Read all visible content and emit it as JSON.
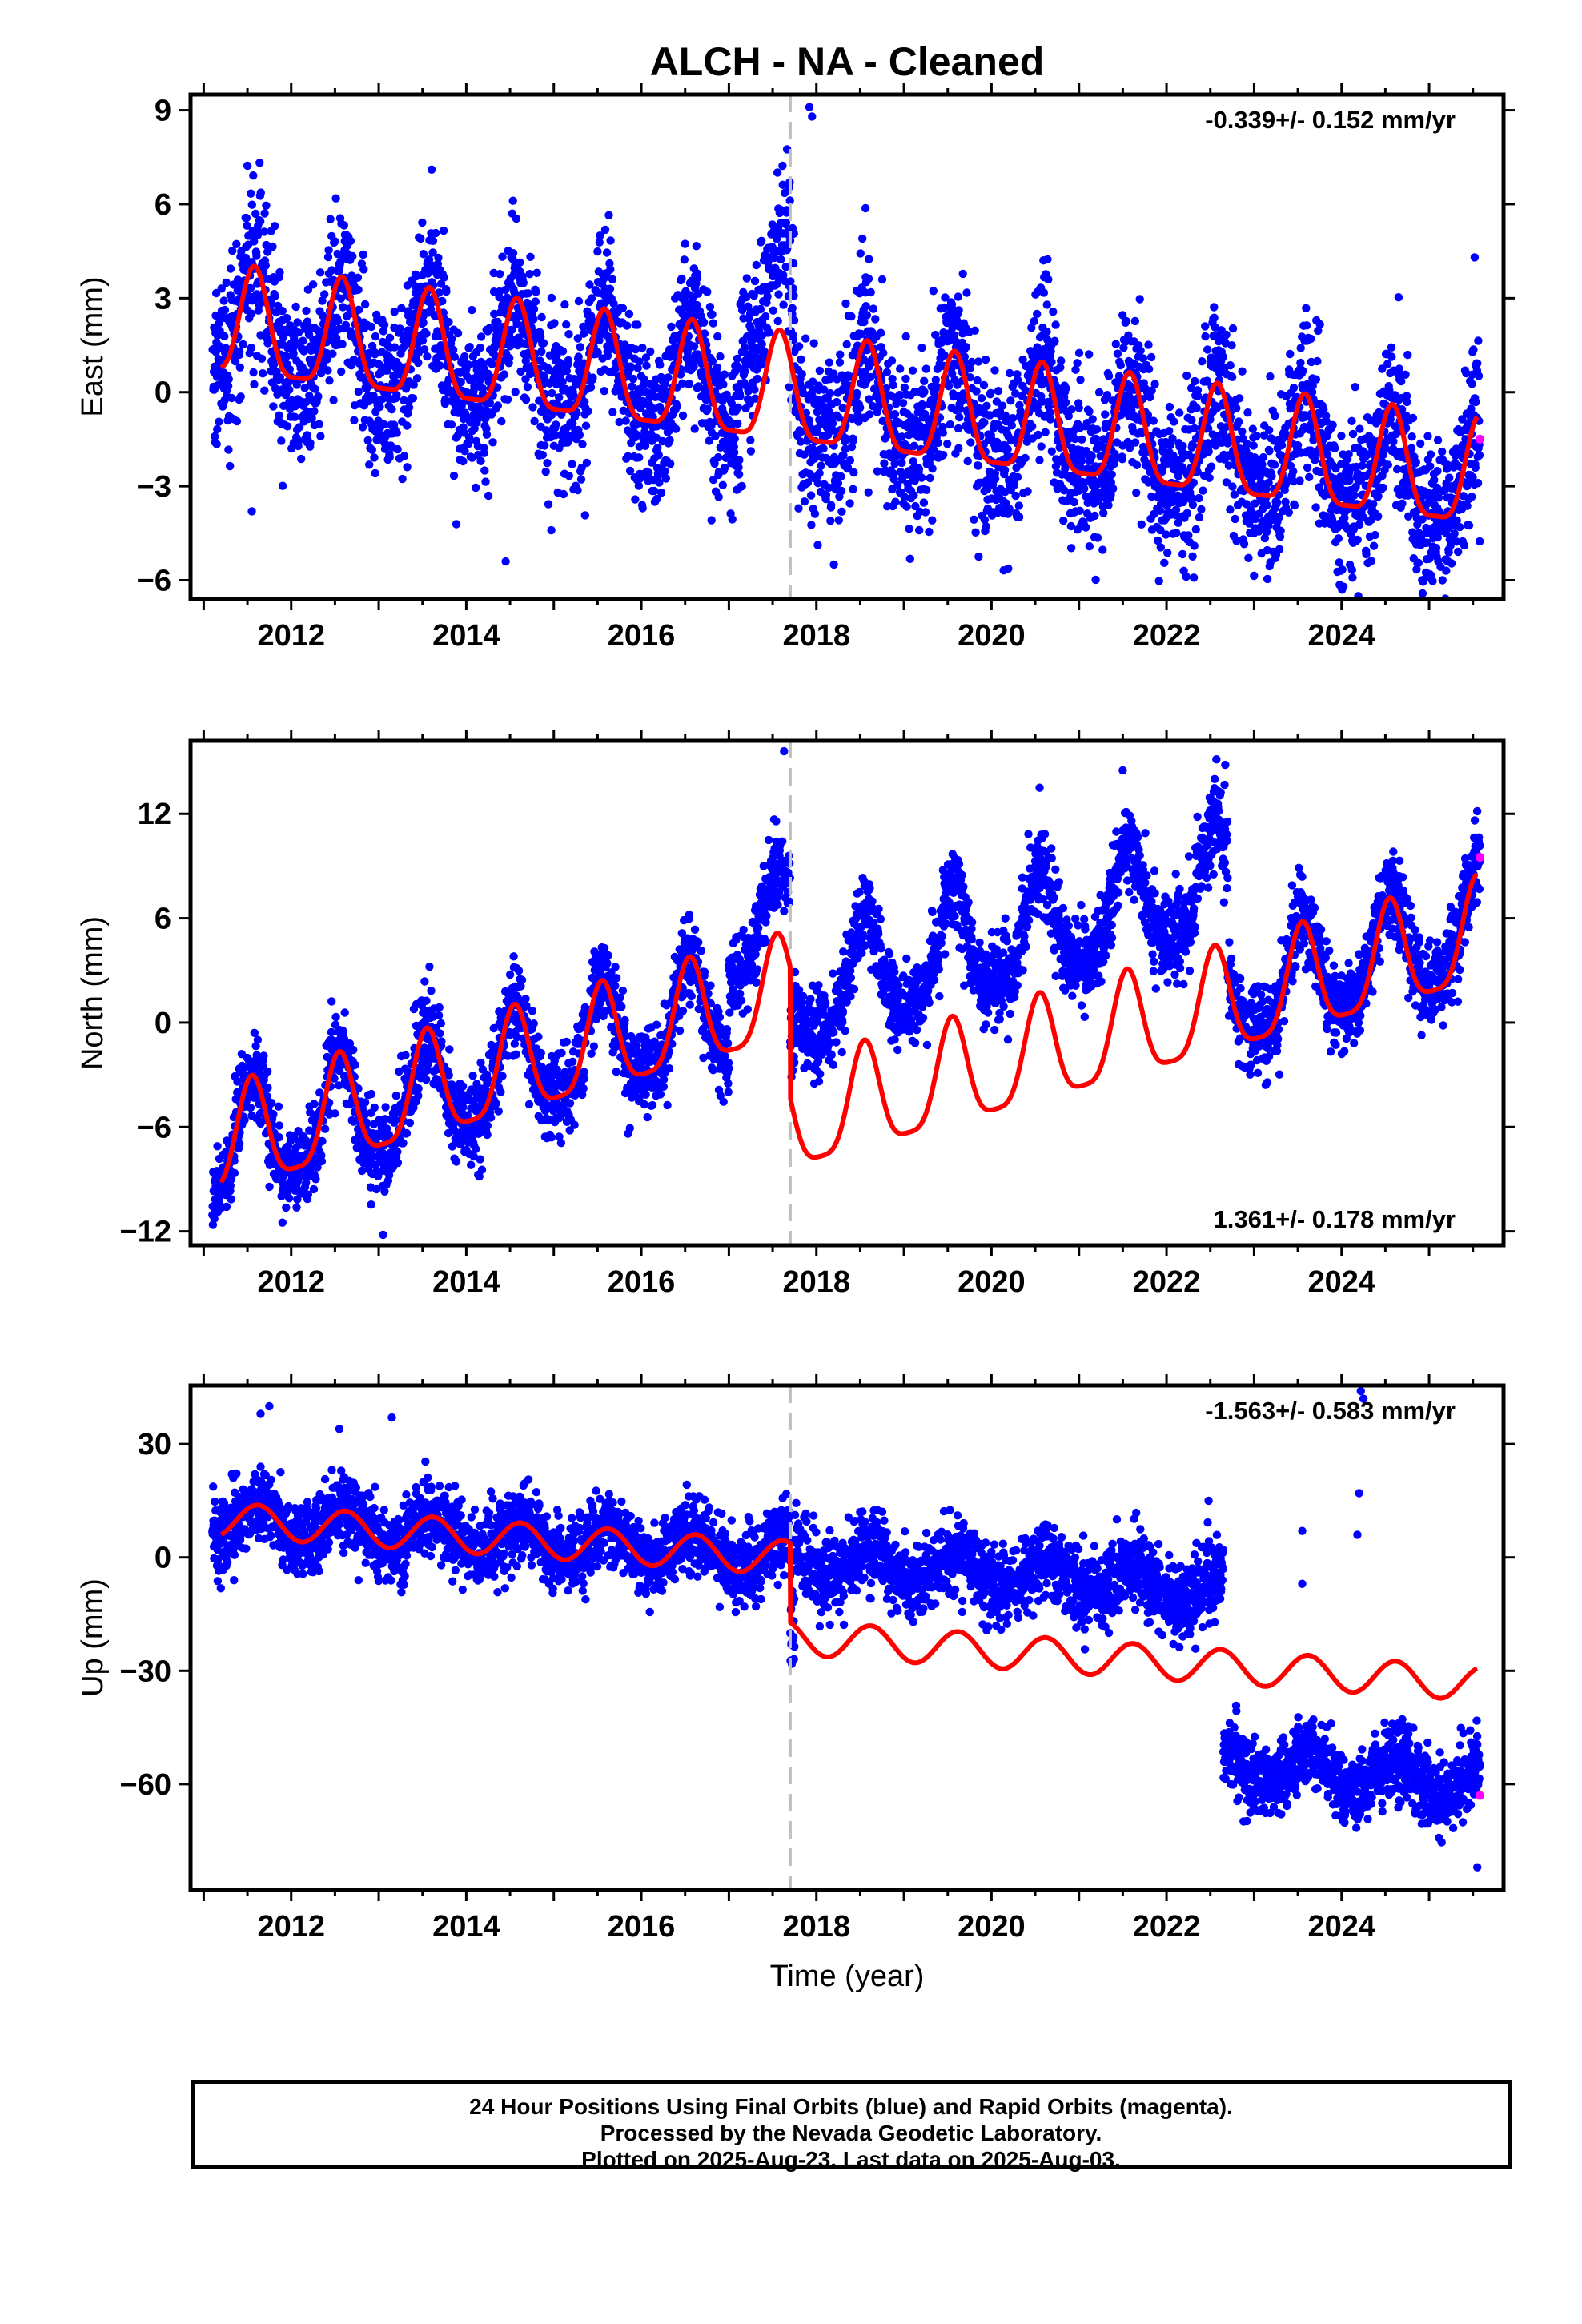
{
  "title": "ALCH  - NA - Cleaned",
  "colors": {
    "final_orbits": "#0000ff",
    "rapid_orbits": "#ff00ff",
    "model": "#ff0000",
    "offset_line": "#c0c0c0",
    "frame": "#000000"
  },
  "x_axis_label": "Time (year)",
  "x_tick_labels": [
    "2012",
    "2014",
    "2016",
    "2018",
    "2020",
    "2022",
    "2024"
  ],
  "footer": {
    "line1": "24 Hour Positions Using Final Orbits (blue) and Rapid Orbits (magenta).",
    "line2": "Processed by the Nevada Geodetic Laboratory.",
    "line3": "Plotted on 2025-Aug-23. Last data on 2025-Aug-03."
  },
  "chart_data": [
    {
      "type": "scatter",
      "component": "East",
      "ylabel": "East (mm)",
      "xlabel": "",
      "xlim": [
        2010.85,
        2025.85
      ],
      "ylim": [
        -6.6,
        9.5
      ],
      "y_ticks": [
        9,
        6,
        3,
        0,
        -3,
        -6
      ],
      "x_ticks": [
        2012,
        2014,
        2016,
        2018,
        2020,
        2022,
        2024
      ],
      "grid": false,
      "rate_text": "-0.339+/- 0.152 mm/yr",
      "rate_position": "top-right",
      "offset_epochs": [
        2017.7
      ],
      "model": {
        "start_year": 2011.2,
        "end_year": 2025.55,
        "base_year": 2011.2,
        "intercept": [
          2.0,
          2.0
        ],
        "rate": -0.339,
        "annual_amplitude": 1.7,
        "annual_peak_year_fraction": 0.58,
        "semiannual_amplitude": 0.45,
        "offsets": []
      },
      "scatter": {
        "noise_sd": 1.3,
        "segments": [
          {
            "from": 2011.1,
            "to": 2017.15,
            "shift": 0
          },
          {
            "from": 2017.15,
            "to": 2017.75,
            "shift": 2.5
          },
          {
            "from": 2017.75,
            "to": 2025.58,
            "shift": 0
          }
        ]
      },
      "rapid_points": [
        [
          2025.58,
          -1.5
        ]
      ],
      "outliers": [
        [
          2017.92,
          9.1
        ],
        [
          2017.95,
          8.8
        ],
        [
          2014.45,
          -5.4
        ],
        [
          2011.55,
          -3.8
        ],
        [
          2018.2,
          -5.5
        ],
        [
          2025.52,
          4.3
        ]
      ]
    },
    {
      "type": "scatter",
      "component": "North",
      "ylabel": "North (mm)",
      "xlabel": "",
      "xlim": [
        2010.85,
        2025.85
      ],
      "ylim": [
        -12.8,
        16.2
      ],
      "y_ticks": [
        12,
        6,
        0,
        -6,
        -12
      ],
      "x_ticks": [
        2012,
        2014,
        2016,
        2018,
        2020,
        2022,
        2024
      ],
      "grid": false,
      "rate_text": "1.361+/- 0.178 mm/yr",
      "rate_position": "bottom-right",
      "offset_epochs": [
        2017.7
      ],
      "model": {
        "start_year": 2011.2,
        "end_year": 2025.55,
        "base_year": 2011.2,
        "intercept": [
          -7.2,
          -7.2
        ],
        "rate": 1.361,
        "annual_amplitude": 3.0,
        "annual_peak_year_fraction": 0.55,
        "semiannual_amplitude": 0.7,
        "offsets": [
          [
            2017.7,
            -7.5
          ]
        ]
      },
      "scatter": {
        "noise_sd": 1.2,
        "segments": [
          {
            "from": 2011.1,
            "to": 2017.0,
            "shift": 0
          },
          {
            "from": 2017.0,
            "to": 2017.75,
            "shift": 4.0
          },
          {
            "from": 2017.75,
            "to": 2022.7,
            "shift": 7.2
          },
          {
            "from": 2022.7,
            "to": 2025.58,
            "shift": 0.5
          }
        ]
      },
      "rapid_points": [
        [
          2025.58,
          9.5
        ]
      ],
      "outliers": [
        [
          2017.63,
          15.6
        ],
        [
          2021.5,
          14.5
        ],
        [
          2022.55,
          14.0
        ],
        [
          2020.55,
          13.5
        ],
        [
          2013.05,
          -12.2
        ],
        [
          2011.9,
          -11.5
        ]
      ]
    },
    {
      "type": "scatter",
      "component": "Up",
      "ylabel": "Up (mm)",
      "xlabel": "Time (year)",
      "xlim": [
        2010.85,
        2025.85
      ],
      "ylim": [
        -88,
        45.5
      ],
      "y_ticks": [
        30,
        0,
        -30,
        -60
      ],
      "x_ticks": [
        2012,
        2014,
        2016,
        2018,
        2020,
        2022,
        2024
      ],
      "grid": false,
      "rate_text": "-1.563+/- 0.583 mm/yr",
      "rate_position": "top-right",
      "offset_epochs": [
        2017.7
      ],
      "model": {
        "start_year": 2011.2,
        "end_year": 2025.55,
        "base_year": 2011.2,
        "intercept": [
          10.0,
          10.0
        ],
        "rate": -1.563,
        "annual_amplitude": 4.5,
        "annual_peak_year_fraction": 0.62,
        "semiannual_amplitude": 0.0,
        "offsets": [
          [
            2017.7,
            -21.0
          ]
        ]
      },
      "scatter": {
        "noise_sd": 5.0,
        "segments": [
          {
            "from": 2011.1,
            "to": 2017.75,
            "shift": 0
          },
          {
            "from": 2017.75,
            "to": 2022.65,
            "shift": 20.5
          },
          {
            "from": 2022.65,
            "to": 2025.58,
            "shift": -26.0
          }
        ]
      },
      "rapid_points": [
        [
          2025.58,
          -63
        ]
      ],
      "outliers": [
        [
          2024.22,
          44
        ],
        [
          2024.25,
          42
        ],
        [
          2024.2,
          17
        ],
        [
          2024.18,
          6
        ],
        [
          2023.55,
          7
        ],
        [
          2023.55,
          -7
        ],
        [
          2025.55,
          -82
        ],
        [
          2011.75,
          40
        ],
        [
          2012.55,
          34
        ],
        [
          2013.15,
          37
        ],
        [
          2011.65,
          38
        ],
        [
          2022.48,
          15
        ],
        [
          2018.5,
          12
        ]
      ]
    }
  ]
}
